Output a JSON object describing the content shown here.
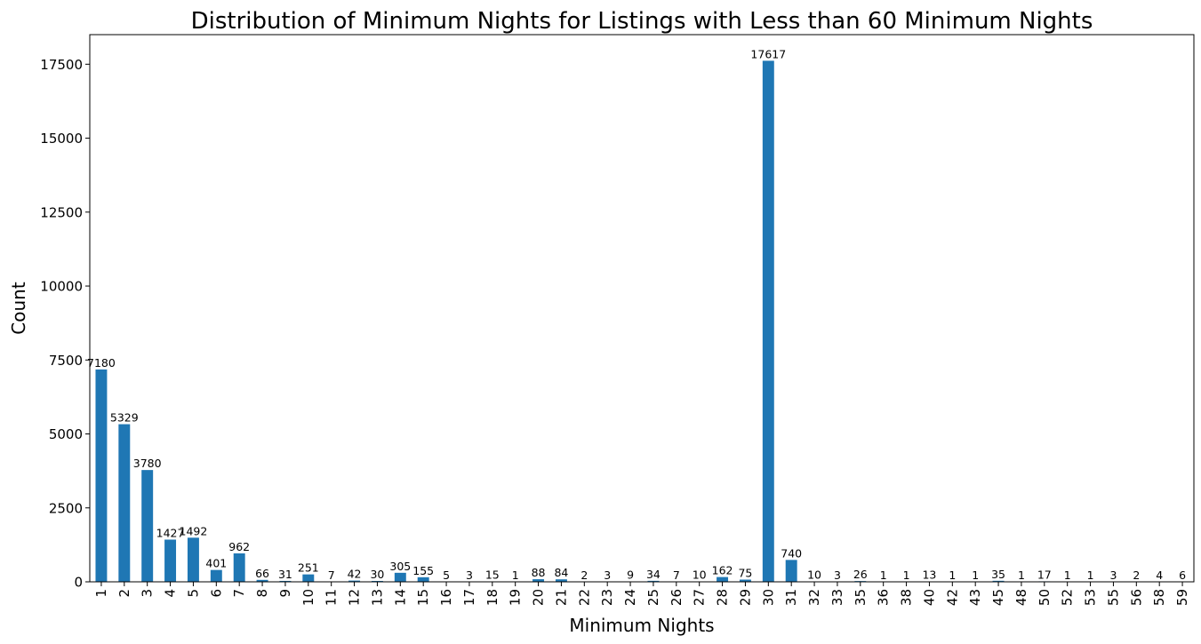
{
  "chart_data": {
    "type": "bar",
    "title": "Distribution of Minimum Nights for Listings with Less than 60 Minimum Nights",
    "xlabel": "Minimum Nights",
    "ylabel": "Count",
    "ylim": [
      0,
      18500
    ],
    "yticks": [
      0,
      2500,
      5000,
      7500,
      10000,
      12500,
      15000,
      17500
    ],
    "ytick_labels": [
      "0",
      "2500",
      "5000",
      "7500",
      "10000",
      "12500",
      "15000",
      "17500"
    ],
    "categories": [
      "1",
      "2",
      "3",
      "4",
      "5",
      "6",
      "7",
      "8",
      "9",
      "10",
      "11",
      "12",
      "13",
      "14",
      "15",
      "16",
      "17",
      "18",
      "19",
      "20",
      "21",
      "22",
      "23",
      "24",
      "25",
      "26",
      "27",
      "28",
      "29",
      "30",
      "31",
      "32",
      "33",
      "35",
      "36",
      "38",
      "40",
      "42",
      "43",
      "45",
      "48",
      "50",
      "52",
      "53",
      "55",
      "56",
      "58",
      "59"
    ],
    "values": [
      7180,
      5329,
      3780,
      1427,
      1492,
      401,
      962,
      66,
      31,
      251,
      7,
      42,
      30,
      305,
      155,
      5,
      3,
      15,
      1,
      88,
      84,
      2,
      3,
      9,
      34,
      7,
      10,
      162,
      75,
      17617,
      740,
      10,
      3,
      26,
      1,
      1,
      13,
      1,
      1,
      35,
      1,
      17,
      1,
      1,
      3,
      2,
      4,
      6
    ],
    "bar_color": "#1f77b4",
    "grid": false,
    "legend": "none"
  }
}
